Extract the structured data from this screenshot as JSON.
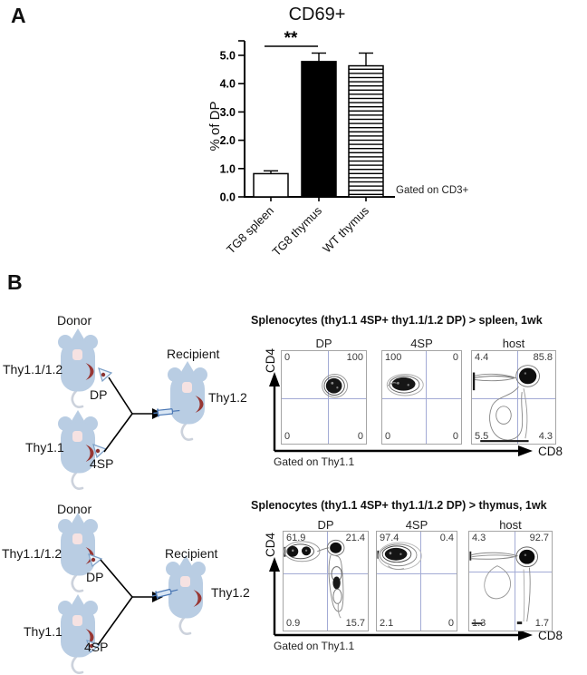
{
  "panelA": {
    "label": "A"
  },
  "chart_data": {
    "type": "bar",
    "title": "CD69+",
    "ylabel": "% of DP",
    "xlabel": "",
    "categories": [
      "TG8 spleen",
      "TG8 thymus",
      "WT thymus"
    ],
    "values": [
      0.82,
      4.78,
      4.63
    ],
    "errors": [
      0.1,
      0.3,
      0.45
    ],
    "bar_styles": [
      "white",
      "black",
      "hstripes"
    ],
    "yticks": [
      "0.0",
      "1.0",
      "2.0",
      "3.0",
      "4.0",
      "5.0"
    ],
    "ylim": [
      0,
      5.5
    ],
    "grid": "off",
    "significance": {
      "label": "**",
      "between": [
        "TG8 spleen",
        "TG8 thymus"
      ]
    },
    "annotation": "Gated on CD3+"
  },
  "panelB": {
    "label": "B",
    "rows": [
      {
        "diagram": {
          "donor": "Donor",
          "recipient": "Recipient",
          "mouse1_strain": "Thy1.1/1.2",
          "mouse2_strain": "Thy1.1",
          "sort1": "DP",
          "sort2": "4SP",
          "recipient_strain": "Thy1.2"
        },
        "title": "Splenocytes (thy1.1 4SP+ thy1.1/1.2 DP) > spleen, 1wk",
        "yaxis": "CD4",
        "xaxis": "CD8",
        "gated": "Gated on Thy1.1",
        "plots": [
          {
            "name": "DP",
            "quadrants": {
              "tl": "0",
              "tr": "100",
              "bl": "0",
              "br": "0"
            }
          },
          {
            "name": "4SP",
            "quadrants": {
              "tl": "100",
              "tr": "0",
              "bl": "0",
              "br": "0"
            }
          },
          {
            "name": "host",
            "quadrants": {
              "tl": "4.4",
              "tr": "85.8",
              "bl": "5.5",
              "br": "4.3"
            }
          }
        ]
      },
      {
        "diagram": {
          "donor": "Donor",
          "recipient": "Recipient",
          "mouse1_strain": "Thy1.1/1.2",
          "mouse2_strain": "Thy1.1",
          "sort1": "DP",
          "sort2": "4SP",
          "recipient_strain": "Thy1.2"
        },
        "title": "Splenocytes (thy1.1 4SP+ thy1.1/1.2 DP) > thymus, 1wk",
        "yaxis": "CD4",
        "xaxis": "CD8",
        "gated": "Gated on Thy1.1",
        "plots": [
          {
            "name": "DP",
            "quadrants": {
              "tl": "61.9",
              "tr": "21.4",
              "bl": "0.9",
              "br": "15.7"
            }
          },
          {
            "name": "4SP",
            "quadrants": {
              "tl": "97.4",
              "tr": "0.4",
              "bl": "2.1",
              "br": "0"
            }
          },
          {
            "name": "host",
            "quadrants": {
              "tl": "4.3",
              "tr": "92.7",
              "bl": "1.3",
              "br": "1.7"
            }
          }
        ]
      }
    ]
  },
  "colors": {
    "mouse_body": "#b9cde3",
    "mouse_patch": "#f6e2e2",
    "mouse_organ": "#983734",
    "quadrant_line": "#a3abd5",
    "syringe": "#4a77b4"
  }
}
